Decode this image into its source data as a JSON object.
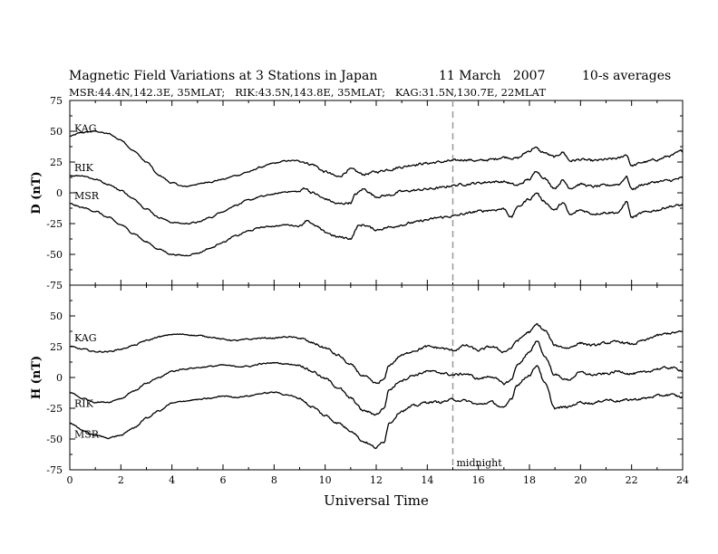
{
  "title": {
    "main": "Magnetic Field Variations at 3 Stations in Japan",
    "date": "11 March   2007",
    "averaging": "10-s averages"
  },
  "subtitle": "MSR:44.4N,142.3E, 35MLAT;   RIK:43.5N,143.8E, 35MLAT;   KAG:31.5N,130.7E, 22MLAT",
  "chart_data": [
    {
      "type": "line",
      "panel": "top",
      "ylabel": "D (nT)",
      "ylim": [
        -75,
        75
      ],
      "yticks": [
        -75,
        -50,
        -25,
        0,
        25,
        50,
        75
      ],
      "xlim": [
        0,
        24
      ],
      "grid": false,
      "series": [
        {
          "name": "KAG",
          "x": [
            0,
            0.5,
            1,
            1.5,
            2,
            2.5,
            3,
            3.5,
            4,
            4.5,
            5,
            5.5,
            6,
            6.5,
            7,
            7.5,
            8,
            8.5,
            9,
            9.5,
            10,
            10.5,
            11,
            11.5,
            12,
            12.5,
            13,
            13.5,
            14,
            14.5,
            15,
            15.5,
            16,
            16.5,
            17,
            17.5,
            18,
            18.2,
            18.5,
            19,
            19.3,
            19.6,
            20,
            20.5,
            21,
            21.5,
            21.8,
            22,
            22.5,
            23,
            23.5,
            24
          ],
          "y": [
            46,
            49,
            50,
            48,
            43,
            34,
            25,
            14,
            8,
            5,
            7,
            9,
            11,
            14,
            17,
            21,
            24,
            26,
            26,
            23,
            17,
            13,
            19,
            15,
            17,
            19,
            21,
            23,
            24,
            25,
            26,
            27,
            26,
            27,
            29,
            28,
            34,
            37,
            33,
            29,
            33,
            26,
            27,
            26,
            27,
            28,
            31,
            22,
            25,
            27,
            30,
            34
          ]
        },
        {
          "name": "RIK",
          "x": [
            0,
            0.5,
            1,
            1.5,
            2,
            2.5,
            3,
            3.5,
            4,
            4.5,
            5,
            5.5,
            6,
            6.5,
            7,
            7.5,
            8,
            8.5,
            9,
            9.2,
            9.5,
            10,
            10.5,
            11,
            11.2,
            11.5,
            12,
            12.5,
            13,
            13.5,
            14,
            14.5,
            15,
            15.5,
            16,
            16.5,
            17,
            17.5,
            18,
            18.3,
            18.5,
            19,
            19.3,
            19.6,
            20,
            20.5,
            21,
            21.5,
            21.8,
            22,
            22.5,
            23,
            23.5,
            24
          ],
          "y": [
            14,
            14,
            11,
            7,
            2,
            -5,
            -13,
            -20,
            -24,
            -25,
            -24,
            -20,
            -15,
            -10,
            -6,
            -3,
            -1,
            1,
            1,
            4,
            0,
            -5,
            -9,
            -8,
            -1,
            3,
            -3,
            -2,
            1,
            2,
            3,
            4,
            6,
            7,
            8,
            9,
            9,
            6,
            11,
            18,
            13,
            4,
            10,
            4,
            7,
            5,
            6,
            7,
            13,
            3,
            7,
            9,
            10,
            12
          ]
        },
        {
          "name": "MSR",
          "x": [
            0,
            0.5,
            1,
            1.5,
            2,
            2.5,
            3,
            3.5,
            4,
            4.5,
            5,
            5.5,
            6,
            6.5,
            7,
            7.5,
            8,
            8.5,
            9,
            9.3,
            9.6,
            10,
            10.5,
            11,
            11.3,
            11.5,
            12,
            12.5,
            13,
            13.5,
            14,
            14.5,
            15,
            15.5,
            16,
            16.5,
            17,
            17.3,
            17.5,
            18,
            18.3,
            18.5,
            19,
            19.3,
            19.6,
            20,
            20.5,
            21,
            21.5,
            21.8,
            22,
            22.5,
            23,
            23.5,
            24
          ],
          "y": [
            -9,
            -12,
            -15,
            -20,
            -26,
            -33,
            -40,
            -46,
            -50,
            -51,
            -49,
            -45,
            -40,
            -35,
            -31,
            -28,
            -27,
            -26,
            -27,
            -22,
            -27,
            -32,
            -36,
            -37,
            -27,
            -26,
            -30,
            -28,
            -26,
            -24,
            -22,
            -20,
            -19,
            -17,
            -15,
            -14,
            -13,
            -20,
            -12,
            -5,
            0,
            -6,
            -14,
            -8,
            -18,
            -14,
            -17,
            -16,
            -16,
            -7,
            -20,
            -16,
            -14,
            -11,
            -10
          ]
        }
      ]
    },
    {
      "type": "line",
      "panel": "bottom",
      "ylabel": "H (nT)",
      "ylim": [
        -75,
        75
      ],
      "yticks": [
        -75,
        -50,
        -25,
        0,
        25,
        50
      ],
      "xlabel": "Universal Time",
      "xlim": [
        0,
        24
      ],
      "xticks": [
        0,
        2,
        4,
        6,
        8,
        10,
        12,
        14,
        16,
        18,
        20,
        22,
        24
      ],
      "grid": false,
      "series": [
        {
          "name": "KAG",
          "x": [
            0,
            0.5,
            1,
            1.5,
            2,
            2.5,
            3,
            3.5,
            4,
            4.5,
            5,
            5.5,
            6,
            6.5,
            7,
            7.5,
            8,
            8.5,
            9,
            9.5,
            10,
            10.5,
            11,
            11.5,
            12,
            12.3,
            12.5,
            13,
            13.5,
            14,
            14.5,
            15,
            15.5,
            16,
            16.5,
            17,
            17.3,
            17.5,
            18,
            18.3,
            18.6,
            19,
            19.5,
            20,
            20.5,
            21,
            21.5,
            22,
            22.5,
            23,
            23.5,
            24
          ],
          "y": [
            25,
            23,
            21,
            21,
            23,
            26,
            30,
            33,
            35,
            35,
            34,
            33,
            31,
            30,
            31,
            32,
            32,
            33,
            32,
            28,
            24,
            18,
            10,
            1,
            -5,
            -2,
            10,
            18,
            22,
            25,
            24,
            22,
            26,
            22,
            25,
            21,
            24,
            30,
            37,
            43,
            38,
            26,
            24,
            28,
            26,
            28,
            29,
            27,
            30,
            34,
            36,
            37
          ]
        },
        {
          "name": "RIK",
          "x": [
            0,
            0.5,
            1,
            1.5,
            2,
            2.5,
            3,
            3.5,
            4,
            4.5,
            5,
            5.5,
            6,
            6.5,
            7,
            7.5,
            8,
            8.5,
            9,
            9.5,
            10,
            10.5,
            11,
            11.5,
            12,
            12.3,
            12.5,
            13,
            13.5,
            14,
            14.5,
            15,
            15.5,
            16,
            16.5,
            17,
            17.3,
            17.5,
            18,
            18.3,
            18.6,
            19,
            19.5,
            20,
            20.5,
            21,
            21.5,
            22,
            22.5,
            23,
            23.5,
            24
          ],
          "y": [
            -12,
            -17,
            -20,
            -20,
            -17,
            -11,
            -5,
            0,
            5,
            7,
            8,
            9,
            10,
            9,
            9,
            11,
            12,
            11,
            10,
            5,
            -1,
            -8,
            -17,
            -27,
            -30,
            -25,
            -10,
            -2,
            2,
            5,
            4,
            2,
            3,
            -1,
            1,
            -5,
            -2,
            10,
            20,
            30,
            17,
            2,
            -2,
            4,
            2,
            3,
            5,
            3,
            4,
            7,
            8,
            6
          ]
        },
        {
          "name": "MSR",
          "x": [
            0,
            0.5,
            1,
            1.5,
            2,
            2.5,
            3,
            3.5,
            4,
            4.5,
            5,
            5.5,
            6,
            6.5,
            7,
            7.5,
            8,
            8.5,
            9,
            9.5,
            10,
            10.5,
            11,
            11.5,
            12,
            12.3,
            12.5,
            13,
            13.5,
            14,
            14.5,
            15,
            15.5,
            16,
            16.5,
            17,
            17.3,
            17.5,
            18,
            18.3,
            18.6,
            19,
            19.5,
            20,
            20.5,
            21,
            21.5,
            22,
            22.5,
            23,
            23.5,
            24
          ],
          "y": [
            -37,
            -43,
            -47,
            -49,
            -47,
            -41,
            -33,
            -27,
            -21,
            -19,
            -18,
            -17,
            -15,
            -16,
            -15,
            -13,
            -12,
            -14,
            -17,
            -24,
            -31,
            -37,
            -43,
            -52,
            -57,
            -52,
            -37,
            -27,
            -23,
            -20,
            -20,
            -18,
            -19,
            -22,
            -20,
            -25,
            -17,
            -6,
            2,
            10,
            -5,
            -25,
            -24,
            -20,
            -21,
            -18,
            -19,
            -18,
            -17,
            -15,
            -14,
            -16
          ]
        }
      ]
    }
  ],
  "annotations": {
    "midline_x": 15,
    "midline_label": "midnight"
  }
}
